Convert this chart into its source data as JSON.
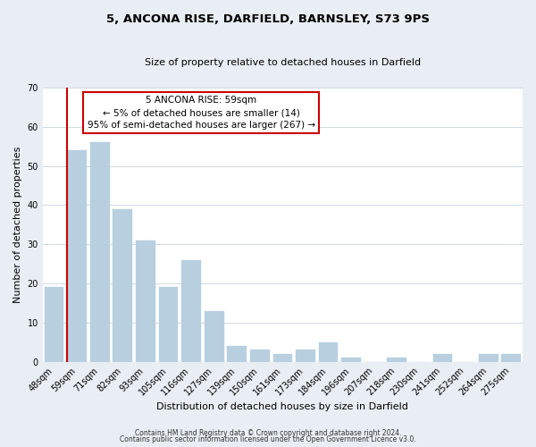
{
  "title": "5, ANCONA RISE, DARFIELD, BARNSLEY, S73 9PS",
  "subtitle": "Size of property relative to detached houses in Darfield",
  "xlabel": "Distribution of detached houses by size in Darfield",
  "ylabel": "Number of detached properties",
  "categories": [
    "48sqm",
    "59sqm",
    "71sqm",
    "82sqm",
    "93sqm",
    "105sqm",
    "116sqm",
    "127sqm",
    "139sqm",
    "150sqm",
    "161sqm",
    "173sqm",
    "184sqm",
    "196sqm",
    "207sqm",
    "218sqm",
    "230sqm",
    "241sqm",
    "252sqm",
    "264sqm",
    "275sqm"
  ],
  "values": [
    19,
    54,
    56,
    39,
    31,
    19,
    26,
    13,
    4,
    3,
    2,
    3,
    5,
    1,
    0,
    1,
    0,
    2,
    0,
    2,
    2
  ],
  "bar_color": "#b8cfe0",
  "red_line_color": "#cc0000",
  "red_line_index": 1,
  "annotation_title": "5 ANCONA RISE: 59sqm",
  "annotation_line1": "← 5% of detached houses are smaller (14)",
  "annotation_line2": "95% of semi-detached houses are larger (267) →",
  "annotation_box_facecolor": "#ffffff",
  "annotation_box_edgecolor": "#cc0000",
  "ylim": [
    0,
    70
  ],
  "yticks": [
    0,
    10,
    20,
    30,
    40,
    50,
    60,
    70
  ],
  "footer1": "Contains HM Land Registry data © Crown copyright and database right 2024.",
  "footer2": "Contains public sector information licensed under the Open Government Licence v3.0.",
  "bg_color": "#e8eef4",
  "plot_bg_color": "#ffffff",
  "grid_color": "#c8d4e0",
  "title_fontsize": 9.5,
  "subtitle_fontsize": 8,
  "axis_label_fontsize": 8,
  "tick_fontsize": 7,
  "annotation_fontsize": 7.5,
  "footer_fontsize": 5.5
}
